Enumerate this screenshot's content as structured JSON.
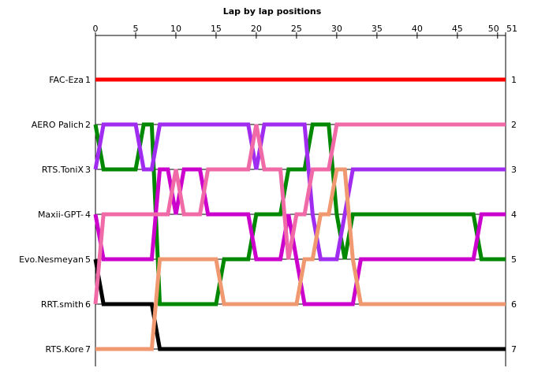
{
  "chart_data": {
    "type": "line",
    "title": "Lap by lap positions",
    "xlabel": "",
    "ylabel": "",
    "xlim": [
      0,
      51
    ],
    "ylim": [
      1,
      7
    ],
    "x_ticks": [
      0,
      5,
      10,
      15,
      20,
      25,
      30,
      35,
      40,
      45,
      50,
      51
    ],
    "y_ticks": [
      1,
      2,
      3,
      4,
      5,
      6,
      7
    ],
    "y_inverted": true,
    "grid": true,
    "series": [
      {
        "name": "FAC-Eza",
        "color": "#ff0000",
        "values": [
          1,
          1,
          1,
          1,
          1,
          1,
          1,
          1,
          1,
          1,
          1,
          1,
          1,
          1,
          1,
          1,
          1,
          1,
          1,
          1,
          1,
          1,
          1,
          1,
          1,
          1,
          1,
          1,
          1,
          1,
          1,
          1,
          1,
          1,
          1,
          1,
          1,
          1,
          1,
          1,
          1,
          1,
          1,
          1,
          1,
          1,
          1,
          1,
          1,
          1,
          1,
          1
        ]
      },
      {
        "name": "AERO  Palich",
        "color": "#008800",
        "values": [
          2,
          3,
          3,
          3,
          3,
          3,
          2,
          2,
          6,
          6,
          6,
          6,
          6,
          6,
          6,
          6,
          5,
          5,
          5,
          5,
          4,
          4,
          4,
          4,
          3,
          3,
          3,
          2,
          2,
          2,
          4,
          5,
          4,
          4,
          4,
          4,
          4,
          4,
          4,
          4,
          4,
          4,
          4,
          4,
          4,
          4,
          4,
          4,
          5,
          5,
          5,
          5
        ]
      },
      {
        "name": "RTS.ToniX",
        "color": "#a02cf0",
        "values": [
          3,
          2,
          2,
          2,
          2,
          2,
          3,
          3,
          2,
          2,
          2,
          2,
          2,
          2,
          2,
          2,
          2,
          2,
          2,
          2,
          3,
          2,
          2,
          2,
          2,
          2,
          2,
          4,
          5,
          5,
          5,
          4,
          3,
          3,
          3,
          3,
          3,
          3,
          3,
          3,
          3,
          3,
          3,
          3,
          3,
          3,
          3,
          3,
          3,
          3,
          3,
          3
        ]
      },
      {
        "name": "Maxii-GPT-",
        "color": "#cc00cc",
        "values": [
          4,
          5,
          5,
          5,
          5,
          5,
          5,
          5,
          3,
          3,
          4,
          3,
          3,
          3,
          4,
          4,
          4,
          4,
          4,
          4,
          5,
          5,
          5,
          5,
          4,
          5,
          6,
          6,
          6,
          6,
          6,
          6,
          6,
          5,
          5,
          5,
          5,
          5,
          5,
          5,
          5,
          5,
          5,
          5,
          5,
          5,
          5,
          5,
          4,
          4,
          4,
          4
        ]
      },
      {
        "name": "Evo.Nesmeyan",
        "color": "#000000",
        "values": [
          5,
          6,
          6,
          6,
          6,
          6,
          6,
          6,
          7,
          7,
          7,
          7,
          7,
          7,
          7,
          7,
          7,
          7,
          7,
          7,
          7,
          7,
          7,
          7,
          7,
          7,
          7,
          7,
          7,
          7,
          7,
          7,
          7,
          7,
          7,
          7,
          7,
          7,
          7,
          7,
          7,
          7,
          7,
          7,
          7,
          7,
          7,
          7,
          7,
          7,
          7,
          7
        ]
      },
      {
        "name": "RRT.smith",
        "color": "#f06aa8",
        "values": [
          6,
          4,
          4,
          4,
          4,
          4,
          4,
          4,
          4,
          4,
          3,
          4,
          4,
          4,
          3,
          3,
          3,
          3,
          3,
          3,
          2,
          3,
          3,
          3,
          5,
          4,
          4,
          3,
          3,
          3,
          2,
          2,
          2,
          2,
          2,
          2,
          2,
          2,
          2,
          2,
          2,
          2,
          2,
          2,
          2,
          2,
          2,
          2,
          2,
          2,
          2,
          2
        ]
      },
      {
        "name": "RTS.Kore",
        "color": "#f09870",
        "values": [
          7,
          7,
          7,
          7,
          7,
          7,
          7,
          7,
          5,
          5,
          5,
          5,
          5,
          5,
          5,
          5,
          6,
          6,
          6,
          6,
          6,
          6,
          6,
          6,
          6,
          6,
          5,
          5,
          4,
          4,
          3,
          3,
          5,
          6,
          6,
          6,
          6,
          6,
          6,
          6,
          6,
          6,
          6,
          6,
          6,
          6,
          6,
          6,
          6,
          6,
          6,
          6
        ]
      }
    ]
  }
}
